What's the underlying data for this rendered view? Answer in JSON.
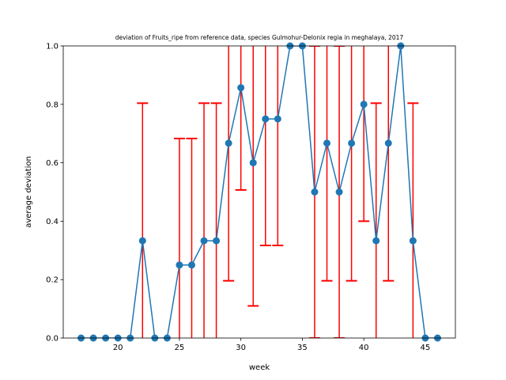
{
  "chart_data": {
    "type": "line",
    "title": "deviation of Fruits_ripe from reference data, species Gulmohur-Delonix regia in meghalaya, 2017",
    "xlabel": "week",
    "ylabel": "average deviation",
    "xlim": [
      15.55,
      47.45
    ],
    "ylim": [
      0,
      1
    ],
    "xticks": [
      20,
      25,
      30,
      35,
      40,
      45
    ],
    "yticks": [
      0.0,
      0.2,
      0.4,
      0.6,
      0.8,
      1.0
    ],
    "grid": false,
    "line_color": "#1f77b4",
    "error_color": "#ff0000",
    "series": [
      {
        "x": [
          17,
          18,
          19,
          20,
          21,
          22,
          23,
          24,
          25,
          26,
          27,
          28,
          29,
          30,
          31,
          32,
          33,
          34,
          35,
          36,
          37,
          38,
          39,
          40,
          41,
          42,
          43,
          44,
          45,
          46
        ],
        "y": [
          0,
          0,
          0,
          0,
          0,
          0.333,
          0,
          0,
          0.25,
          0.25,
          0.333,
          0.333,
          0.667,
          0.857,
          0.6,
          0.75,
          0.75,
          1.0,
          1.0,
          0.5,
          0.667,
          0.5,
          0.667,
          0.8,
          0.333,
          0.667,
          1.0,
          0.333,
          0,
          0
        ],
        "err": [
          0,
          0,
          0,
          0,
          0,
          0.471,
          0,
          0,
          0.433,
          0.433,
          0.471,
          0.471,
          0.471,
          0.35,
          0.49,
          0.433,
          0.433,
          0,
          0,
          0.5,
          0.471,
          0.5,
          0.471,
          0.4,
          0.471,
          0.471,
          0,
          0.471,
          0,
          0
        ]
      }
    ]
  }
}
